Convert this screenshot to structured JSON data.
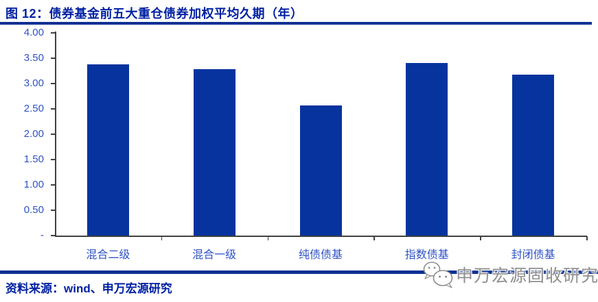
{
  "figure": {
    "title": "图 12：债券基金前五大重仓债券加权平均久期（年）",
    "source": "资料来源：wind、申万宏源研究"
  },
  "watermark": {
    "text": "申万宏源固收研究",
    "icon": "wechat-logo"
  },
  "chart_data": {
    "type": "bar",
    "title": "债券基金前五大重仓债券加权平均久期（年）",
    "categories": [
      "混合二级",
      "混合一级",
      "纯债债基",
      "指数债基",
      "封闭债基"
    ],
    "values": [
      3.38,
      3.28,
      2.57,
      3.4,
      3.18
    ],
    "xlabel": "",
    "ylabel": "",
    "ylim": [
      0,
      4.0
    ],
    "ytick_interval": 0.5,
    "ytick_labels": [
      "-",
      "0.50",
      "1.00",
      "1.50",
      "2.00",
      "2.50",
      "3.00",
      "3.50",
      "4.00"
    ],
    "grid": false,
    "legend": null,
    "bar_color": "#06339E",
    "tick_label_color": "#2E52C5"
  },
  "colors": {
    "title_navy": "#0020A2",
    "rule_navy": "#0A3093",
    "axis_gray": "#404040",
    "watermark_gray": "#8f8f8f"
  }
}
